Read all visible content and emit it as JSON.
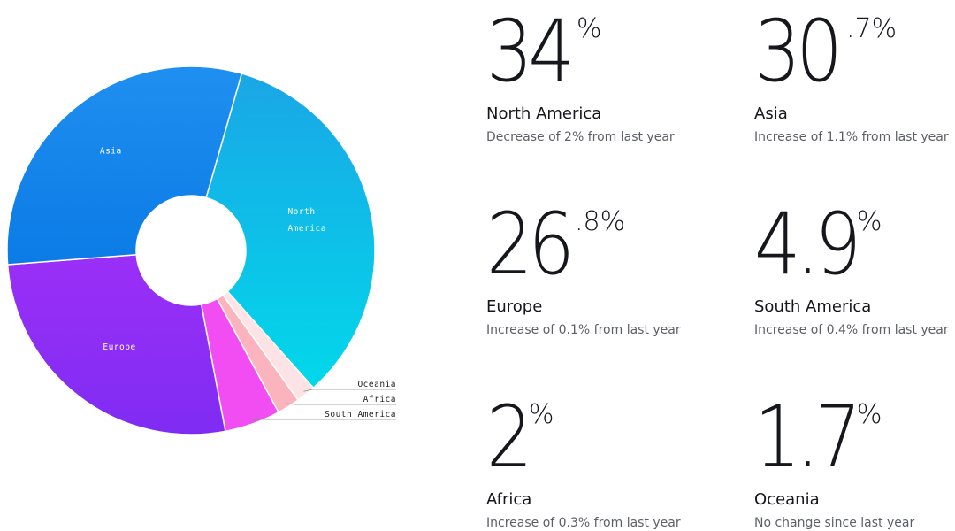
{
  "chart_data": {
    "type": "pie",
    "donut": true,
    "categories": [
      "North America",
      "Oceania",
      "Africa",
      "South America",
      "Europe",
      "Asia"
    ],
    "values": [
      34,
      1.7,
      2,
      4.9,
      26.8,
      30.7
    ],
    "colors": [
      "#14b4e8",
      "#fde2e6",
      "#fbb3be",
      "#f24df2",
      "#8b2cf5",
      "#1a86ea"
    ],
    "slice_labels": {
      "North America": [
        "North",
        "America"
      ],
      "Asia": [
        "Asia"
      ],
      "Europe": [
        "Europe"
      ],
      "Oceania": [
        "Oceania"
      ],
      "Africa": [
        "Africa"
      ],
      "South America": [
        "South America"
      ]
    }
  },
  "stats": [
    {
      "id": "north-america",
      "whole": "34",
      "frac": "%",
      "region": "North America",
      "change": "Decrease of 2% from last year"
    },
    {
      "id": "asia",
      "whole": "30",
      "frac": ".7%",
      "region": "Asia",
      "change": "Increase of 1.1% from last year"
    },
    {
      "id": "europe",
      "whole": "26",
      "frac": ".8%",
      "region": "Europe",
      "change": "Increase of 0.1% from last year"
    },
    {
      "id": "south-america",
      "whole": "4.9",
      "frac": "%",
      "region": "South America",
      "change": "Increase of 0.4% from last year"
    },
    {
      "id": "africa",
      "whole": "2",
      "frac": "%",
      "region": "Africa",
      "change": "Increase of 0.3% from last year"
    },
    {
      "id": "oceania",
      "whole": "1.7",
      "frac": "%",
      "region": "Oceania",
      "change": "No change since last year"
    }
  ]
}
